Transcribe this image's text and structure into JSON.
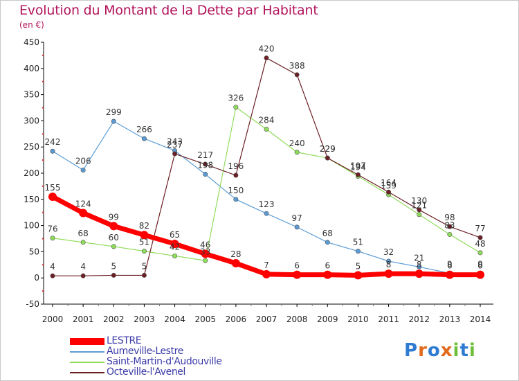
{
  "title": "Evolution du Montant de la Dette par Habitant",
  "unit": "(en €)",
  "logo": "Proxiti",
  "chart_data": {
    "type": "line",
    "title": "Evolution du Montant de la Dette par Habitant",
    "ylabel": "(en €)",
    "xlabel": "",
    "x": [
      2000,
      2001,
      2002,
      2003,
      2004,
      2005,
      2006,
      2007,
      2008,
      2009,
      2010,
      2011,
      2012,
      2013,
      2014
    ],
    "ylim": [
      -50,
      450
    ],
    "yticks": [
      -50,
      0,
      50,
      100,
      150,
      200,
      250,
      300,
      350,
      400,
      450
    ],
    "grid": false,
    "legend_position": "bottom-left",
    "series": [
      {
        "name": "LESTRE",
        "color": "#ff0000",
        "width": 7,
        "values": [
          155,
          124,
          99,
          82,
          65,
          46,
          28,
          7,
          6,
          6,
          5,
          8,
          8,
          6,
          6
        ]
      },
      {
        "name": "Aumeville-Lestre",
        "color": "#5b9bd5",
        "width": 1.2,
        "values": [
          242,
          206,
          299,
          266,
          243,
          198,
          150,
          123,
          97,
          68,
          51,
          32,
          21,
          9,
          9
        ]
      },
      {
        "name": "Saint-Martin-d'Audouville",
        "color": "#8fdc5a",
        "width": 1.2,
        "values": [
          76,
          68,
          60,
          51,
          42,
          33,
          326,
          284,
          240,
          229,
          194,
          159,
          121,
          83,
          48
        ]
      },
      {
        "name": "Octeville-l'Avenel",
        "color": "#6b1f24",
        "width": 1.2,
        "values": [
          4,
          4,
          5,
          5,
          237,
          217,
          196,
          420,
          388,
          229,
          197,
          164,
          130,
          98,
          77
        ]
      }
    ]
  }
}
